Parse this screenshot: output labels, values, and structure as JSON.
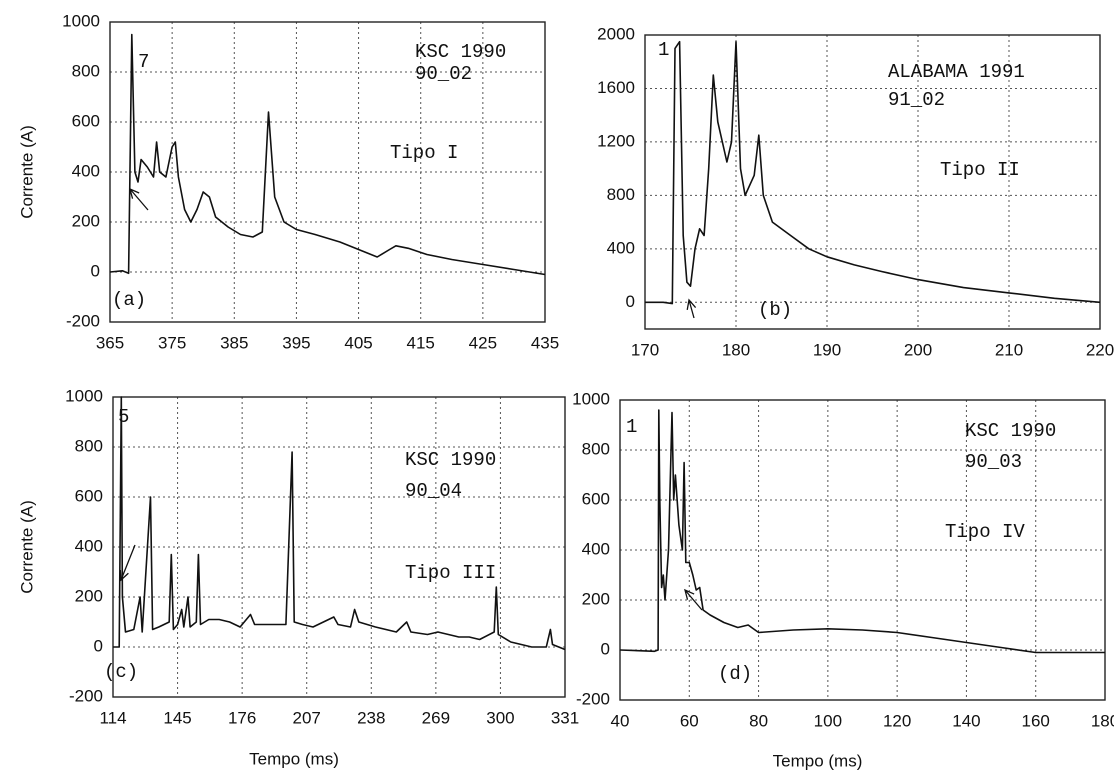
{
  "chart_data": [
    {
      "type": "line",
      "ylabel": "Corrente (A)",
      "x": [
        365,
        367,
        368,
        368.5,
        369,
        369.5,
        370,
        371,
        372,
        372.5,
        373,
        374,
        375,
        375.5,
        376,
        377,
        378,
        379,
        380,
        381,
        382,
        384,
        386,
        388,
        389.5,
        390.5,
        391.5,
        393,
        395,
        398,
        402,
        406,
        408,
        410,
        411,
        413,
        416,
        420,
        425,
        430,
        435
      ],
      "series": [
        {
          "color": "#111111",
          "values": [
            0,
            5,
            -5,
            950,
            400,
            360,
            450,
            420,
            380,
            520,
            400,
            380,
            500,
            520,
            380,
            250,
            200,
            250,
            320,
            300,
            220,
            180,
            150,
            140,
            160,
            640,
            300,
            200,
            170,
            150,
            120,
            80,
            60,
            90,
            105,
            95,
            70,
            50,
            30,
            10,
            -10
          ]
        }
      ],
      "xlim": [
        365,
        435
      ],
      "ylim": [
        -200,
        1000
      ],
      "xticks": [
        365,
        375,
        385,
        395,
        405,
        415,
        425,
        435
      ],
      "yticks": [
        -200,
        0,
        200,
        400,
        600,
        800,
        1000
      ],
      "grid": true,
      "annotations": [
        "7",
        "KSC 1990",
        "90_02",
        "Tipo I",
        "(a)"
      ]
    },
    {
      "type": "line",
      "x": [
        170,
        172,
        173,
        173.3,
        173.8,
        174.2,
        174.6,
        175,
        175.5,
        176,
        176.5,
        177,
        177.5,
        178,
        179,
        179.5,
        180,
        180.5,
        181,
        182,
        182.5,
        183,
        184,
        186,
        188,
        190,
        193,
        196,
        200,
        205,
        210,
        215,
        220
      ],
      "series": [
        {
          "color": "#111111",
          "values": [
            0,
            0,
            -10,
            1900,
            1950,
            500,
            150,
            120,
            400,
            550,
            500,
            1000,
            1700,
            1350,
            1050,
            1200,
            1950,
            1000,
            800,
            950,
            1250,
            800,
            600,
            500,
            400,
            340,
            280,
            230,
            170,
            110,
            70,
            30,
            0
          ]
        }
      ],
      "xlim": [
        170,
        220
      ],
      "ylim": [
        -200,
        2000
      ],
      "xticks": [
        170,
        180,
        190,
        200,
        210,
        220
      ],
      "yticks": [
        0,
        400,
        800,
        1200,
        1600,
        2000
      ],
      "grid": true,
      "annotations": [
        "1",
        "ALABAMA 1991",
        "91_02",
        "Tipo II",
        "(b)"
      ]
    },
    {
      "type": "line",
      "ylabel": "Corrente (A)",
      "xlabel": "Tempo (ms)",
      "x": [
        114,
        117,
        118,
        118.5,
        120,
        124,
        127,
        128,
        132,
        133,
        136,
        141,
        142,
        143,
        145,
        147,
        148,
        150,
        151,
        154,
        155,
        156,
        160,
        165,
        170,
        175,
        180,
        182,
        190,
        197,
        200,
        201,
        205,
        210,
        220,
        222,
        228,
        230,
        232,
        240,
        250,
        255,
        257,
        265,
        270,
        275,
        280,
        285,
        290,
        297,
        298,
        299,
        305,
        310,
        315,
        322,
        324,
        325,
        331
      ],
      "series": [
        {
          "color": "#111111",
          "values": [
            0,
            0,
            1000,
            200,
            60,
            70,
            200,
            60,
            600,
            70,
            80,
            100,
            370,
            70,
            90,
            150,
            80,
            200,
            80,
            100,
            370,
            90,
            110,
            110,
            100,
            80,
            130,
            90,
            90,
            90,
            780,
            100,
            90,
            80,
            120,
            90,
            80,
            150,
            100,
            80,
            60,
            100,
            60,
            50,
            60,
            50,
            40,
            40,
            30,
            60,
            240,
            50,
            20,
            10,
            0,
            0,
            70,
            10,
            -10
          ]
        }
      ],
      "xlim": [
        114,
        331
      ],
      "ylim": [
        -200,
        1000
      ],
      "xticks": [
        114,
        145,
        176,
        207,
        238,
        269,
        300,
        331
      ],
      "yticks": [
        -200,
        0,
        200,
        400,
        600,
        800,
        1000
      ],
      "grid": true,
      "annotations": [
        "5",
        "KSC 1990",
        "90_04",
        "Tipo III",
        "(c)"
      ]
    },
    {
      "type": "line",
      "xlabel": "Tempo (ms)",
      "x": [
        40,
        50,
        51,
        51.2,
        51.5,
        52,
        52.5,
        53,
        54,
        55,
        55.5,
        56,
        57,
        58,
        58.5,
        59,
        60,
        61,
        62,
        63,
        64,
        66,
        70,
        74,
        77,
        78,
        80,
        90,
        100,
        110,
        120,
        130,
        140,
        150,
        160,
        170,
        180
      ],
      "series": [
        {
          "color": "#111111",
          "values": [
            0,
            -5,
            0,
            960,
            600,
            250,
            300,
            200,
            400,
            950,
            600,
            700,
            500,
            400,
            750,
            350,
            350,
            300,
            240,
            250,
            160,
            140,
            110,
            90,
            100,
            90,
            70,
            80,
            85,
            80,
            70,
            50,
            30,
            10,
            -10,
            -10,
            -10
          ]
        }
      ],
      "xlim": [
        40,
        180
      ],
      "ylim": [
        -200,
        1000
      ],
      "xticks": [
        40,
        60,
        80,
        100,
        120,
        140,
        160,
        180
      ],
      "yticks": [
        -200,
        0,
        200,
        400,
        600,
        800,
        1000
      ],
      "grid": true,
      "annotations": [
        "1",
        "KSC 1990",
        "90_03",
        "Tipo IV",
        "(d)"
      ]
    }
  ]
}
